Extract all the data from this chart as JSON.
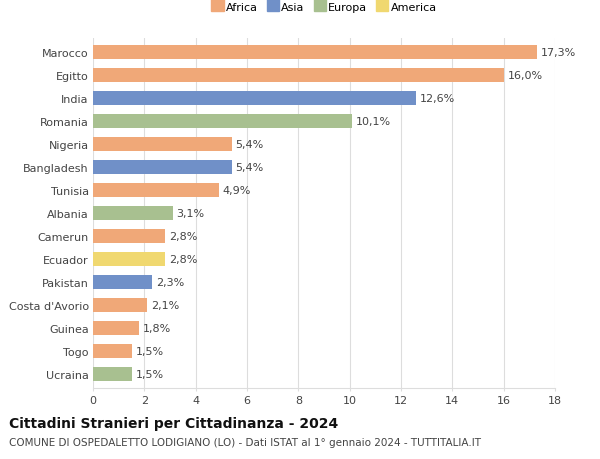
{
  "countries": [
    "Marocco",
    "Egitto",
    "India",
    "Romania",
    "Nigeria",
    "Bangladesh",
    "Tunisia",
    "Albania",
    "Camerun",
    "Ecuador",
    "Pakistan",
    "Costa d'Avorio",
    "Guinea",
    "Togo",
    "Ucraina"
  ],
  "values": [
    17.3,
    16.0,
    12.6,
    10.1,
    5.4,
    5.4,
    4.9,
    3.1,
    2.8,
    2.8,
    2.3,
    2.1,
    1.8,
    1.5,
    1.5
  ],
  "labels": [
    "17,3%",
    "16,0%",
    "12,6%",
    "10,1%",
    "5,4%",
    "5,4%",
    "4,9%",
    "3,1%",
    "2,8%",
    "2,8%",
    "2,3%",
    "2,1%",
    "1,8%",
    "1,5%",
    "1,5%"
  ],
  "continents": [
    "Africa",
    "Africa",
    "Asia",
    "Europa",
    "Africa",
    "Asia",
    "Africa",
    "Europa",
    "Africa",
    "America",
    "Asia",
    "Africa",
    "Africa",
    "Africa",
    "Europa"
  ],
  "colors": {
    "Africa": "#F0A878",
    "Asia": "#7090C8",
    "Europa": "#A8C090",
    "America": "#F0D870"
  },
  "legend_order": [
    "Africa",
    "Asia",
    "Europa",
    "America"
  ],
  "title": "Cittadini Stranieri per Cittadinanza - 2024",
  "subtitle": "COMUNE DI OSPEDALETTO LODIGIANO (LO) - Dati ISTAT al 1° gennaio 2024 - TUTTITALIA.IT",
  "xlim": [
    0,
    18
  ],
  "xticks": [
    0,
    2,
    4,
    6,
    8,
    10,
    12,
    14,
    16,
    18
  ],
  "bg_color": "#ffffff",
  "grid_color": "#dddddd",
  "bar_height": 0.62,
  "label_fontsize": 8,
  "tick_fontsize": 8,
  "title_fontsize": 10,
  "subtitle_fontsize": 7.5
}
